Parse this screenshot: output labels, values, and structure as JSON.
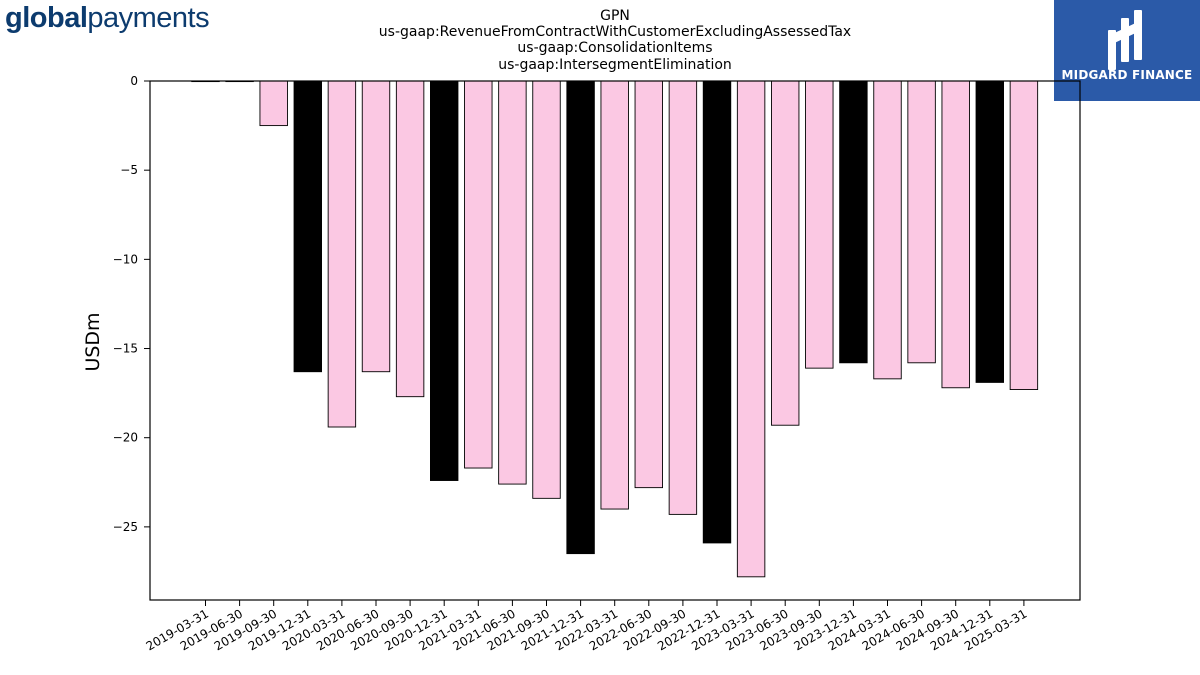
{
  "brand_left": {
    "bold": "global",
    "normal": "payments",
    "color": "#0c3b6e"
  },
  "brand_right": {
    "text": "MIDGARD FINANCE",
    "bg": "#2b5aa8",
    "fg": "#ffffff"
  },
  "chart_data": {
    "type": "bar",
    "title_lines": [
      "GPN",
      "us-gaap:RevenueFromContractWithCustomerExcludingAssessedTax",
      "us-gaap:ConsolidationItems",
      "us-gaap:IntersegmentElimination"
    ],
    "ylabel": "USDm",
    "xlabel": "",
    "ylim": [
      -29.1,
      0
    ],
    "yticks": [
      0,
      -5,
      -10,
      -15,
      -20,
      -25
    ],
    "ytick_labels": [
      "0",
      "−5",
      "−10",
      "−15",
      "−20",
      "−25"
    ],
    "grid": false,
    "categories": [
      "2019-03-31",
      "2019-06-30",
      "2019-09-30",
      "2019-12-31",
      "2020-03-31",
      "2020-06-30",
      "2020-09-30",
      "2020-12-31",
      "2021-03-31",
      "2021-06-30",
      "2021-09-30",
      "2021-12-31",
      "2022-03-31",
      "2022-06-30",
      "2022-09-30",
      "2022-12-31",
      "2023-03-31",
      "2023-06-30",
      "2023-09-30",
      "2023-12-31",
      "2024-03-31",
      "2024-06-30",
      "2024-09-30",
      "2024-12-31",
      "2025-03-31"
    ],
    "values": [
      0,
      0,
      -2.5,
      -16.3,
      -19.4,
      -16.3,
      -17.7,
      -22.4,
      -21.7,
      -22.6,
      -23.4,
      -26.5,
      -24.0,
      -22.8,
      -24.3,
      -25.9,
      -27.8,
      -19.3,
      -16.1,
      -15.8,
      -16.7,
      -15.8,
      -17.2,
      -16.9,
      -17.3
    ],
    "bar_colors": [
      "#fbc8e3",
      "#fbc8e3",
      "#fbc8e3",
      "#000000",
      "#fbc8e3",
      "#fbc8e3",
      "#fbc8e3",
      "#000000",
      "#fbc8e3",
      "#fbc8e3",
      "#fbc8e3",
      "#000000",
      "#fbc8e3",
      "#fbc8e3",
      "#fbc8e3",
      "#000000",
      "#fbc8e3",
      "#fbc8e3",
      "#fbc8e3",
      "#000000",
      "#fbc8e3",
      "#fbc8e3",
      "#fbc8e3",
      "#000000",
      "#fbc8e3"
    ],
    "edge_color": "#000000"
  }
}
